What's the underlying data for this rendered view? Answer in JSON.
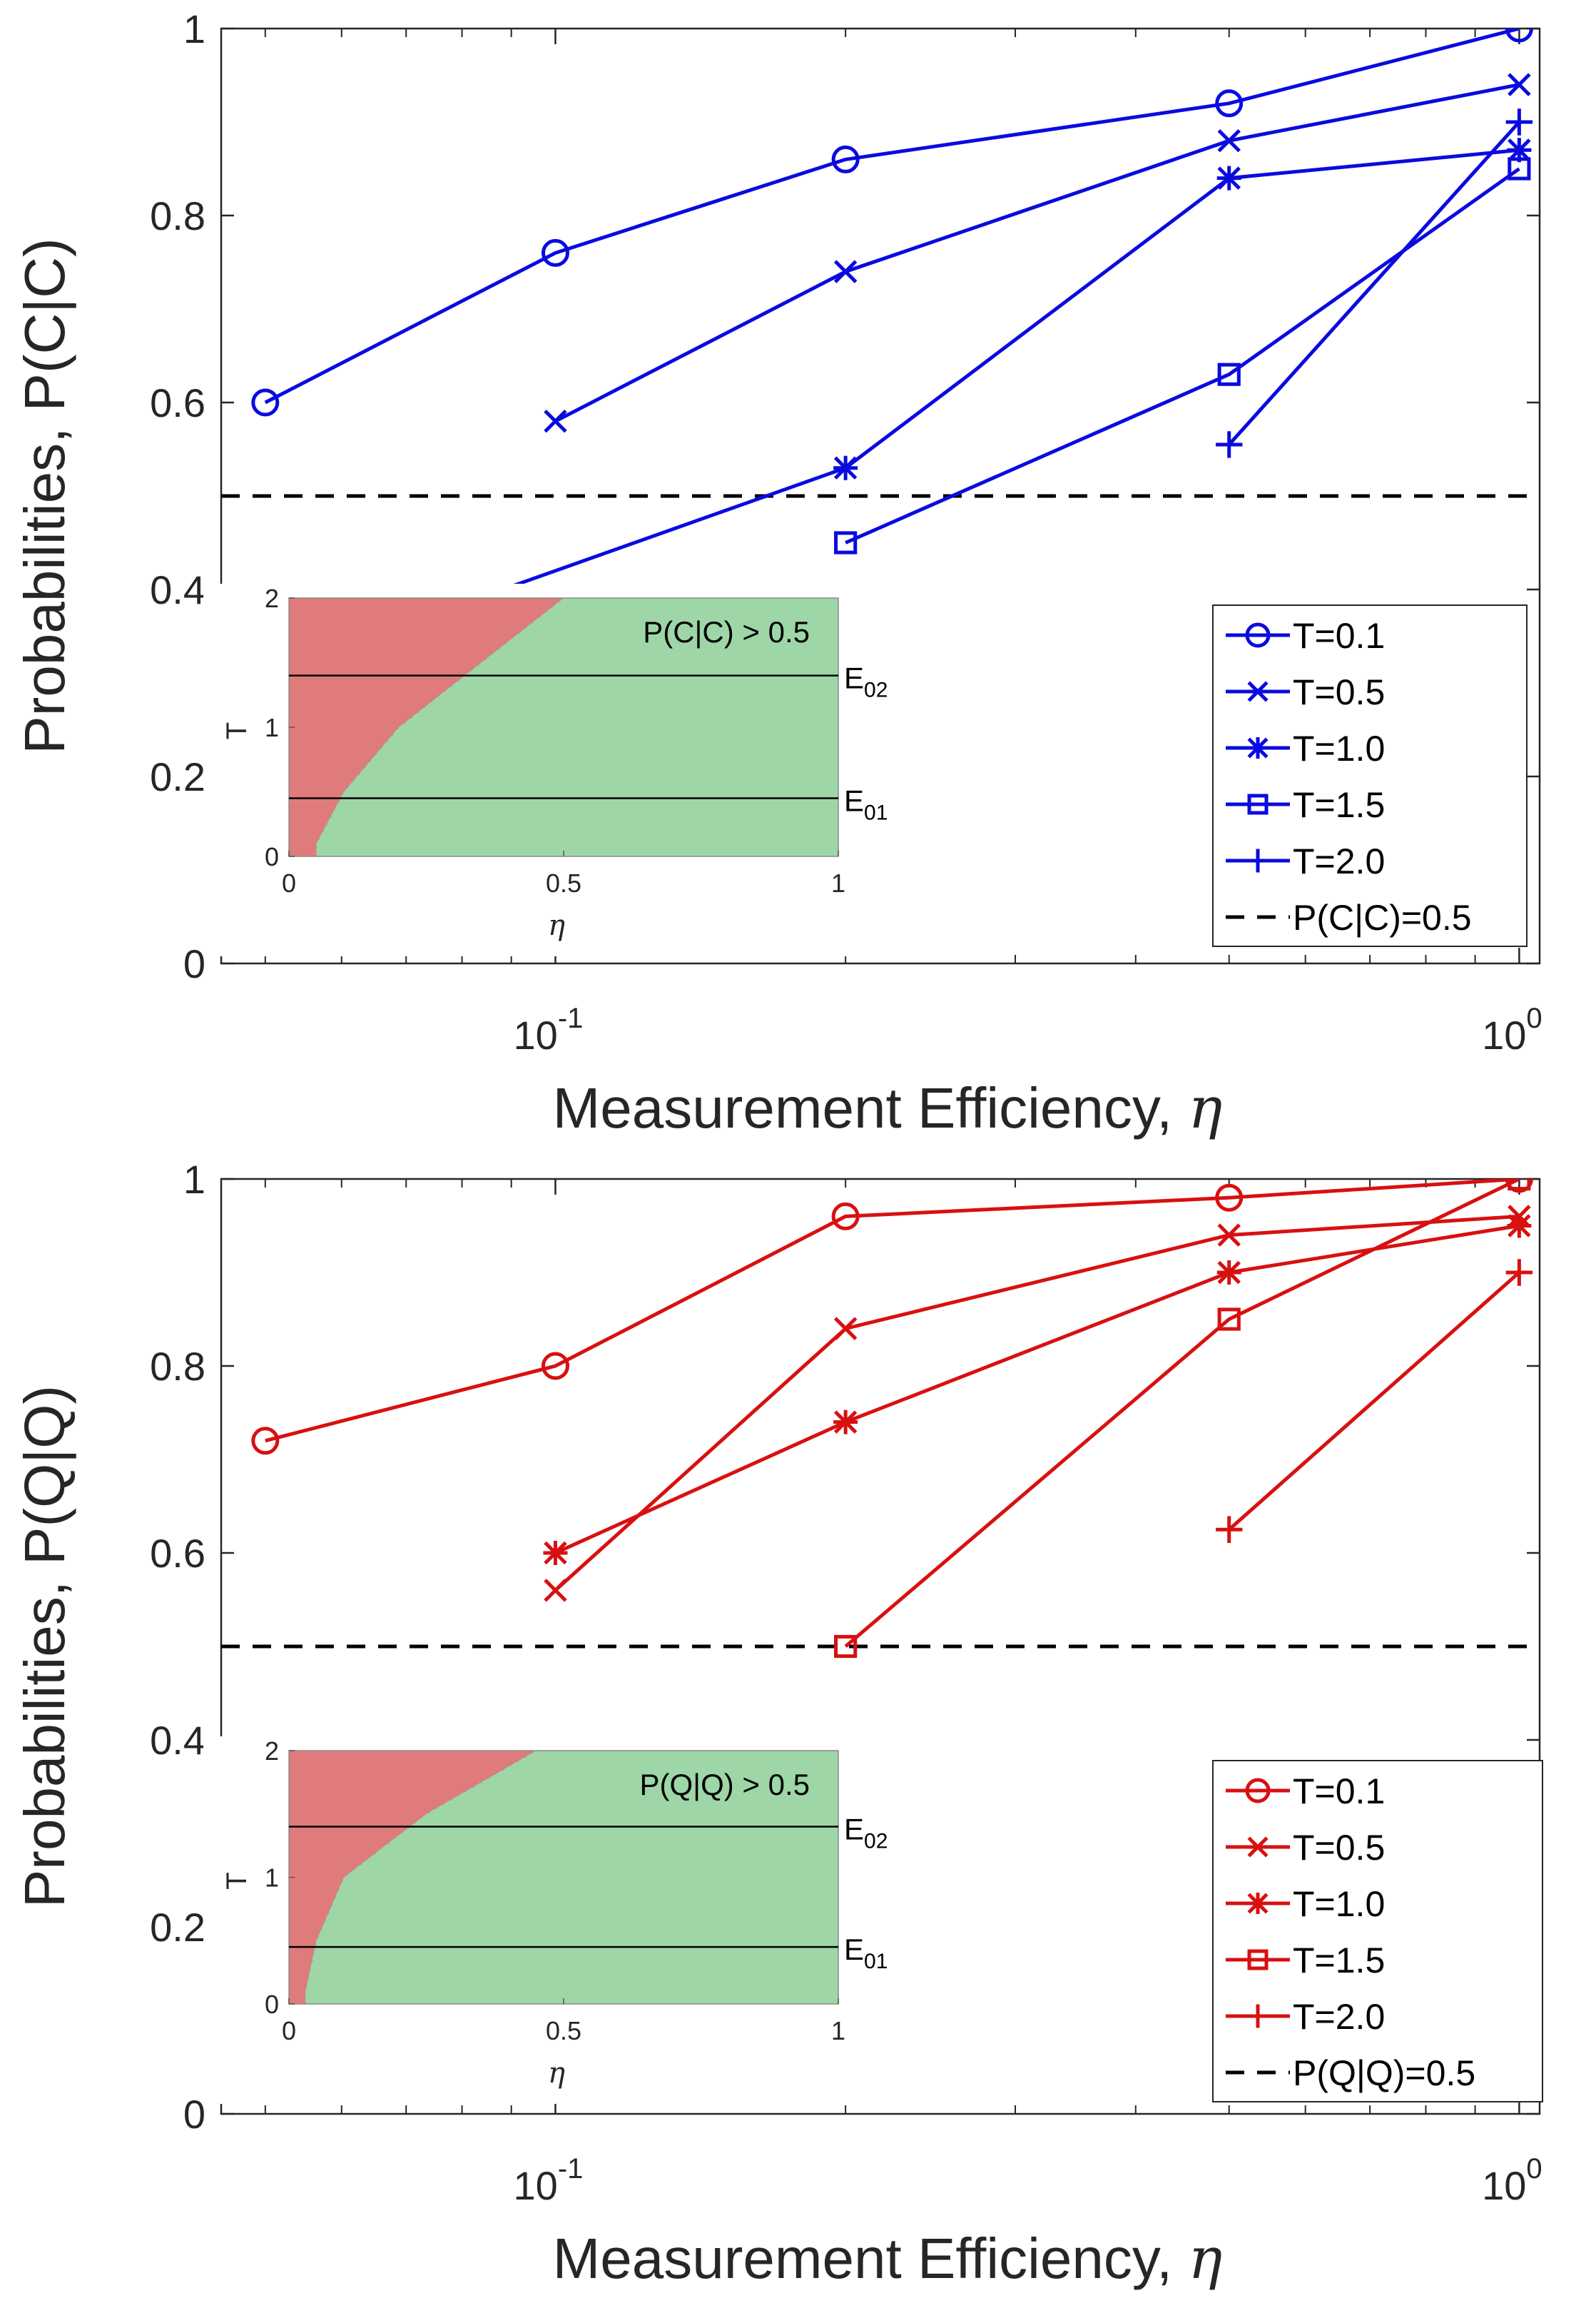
{
  "charts": [
    {
      "id": "top",
      "type": "line",
      "xscale": "log",
      "xlim": [
        0.045,
        1.05
      ],
      "ylim": [
        0,
        1
      ],
      "grid": false,
      "xlabel_text": "Measurement Efficiency, ",
      "xlabel_symbol": "η",
      "ylabel": "Probabilities, P(C|C)",
      "yticks": [
        "0",
        "0.2",
        "0.4",
        "0.6",
        "0.8",
        "1"
      ],
      "xtick_base": "10",
      "xticks": [
        {
          "value": 0.1,
          "exp": "-1"
        },
        {
          "value": 1,
          "exp": "0"
        }
      ],
      "color": "#0a0ae0",
      "series": [
        {
          "name": "T=0.1",
          "marker": "circle",
          "x": [
            0.05,
            0.1,
            0.2,
            0.5,
            1.0
          ],
          "y": [
            0.6,
            0.76,
            0.86,
            0.92,
            1.0
          ]
        },
        {
          "name": "T=0.5",
          "marker": "x",
          "x": [
            0.1,
            0.2,
            0.5,
            1.0
          ],
          "y": [
            0.58,
            0.74,
            0.88,
            0.94
          ]
        },
        {
          "name": "T=1.0",
          "marker": "star",
          "x": [
            0.05,
            0.2,
            0.5,
            1.0
          ],
          "y": [
            0.31,
            0.53,
            0.84,
            0.87
          ]
        },
        {
          "name": "T=1.5",
          "marker": "square",
          "x": [
            0.2,
            0.5,
            1.0
          ],
          "y": [
            0.45,
            0.63,
            0.85
          ]
        },
        {
          "name": "T=2.0",
          "marker": "plus",
          "x": [
            0.5,
            1.0
          ],
          "y": [
            0.555,
            0.9
          ]
        }
      ],
      "reference": {
        "name": "P(C|C)=0.5",
        "y": 0.5
      },
      "legend_position": "bottom-right",
      "inset": {
        "title": "P(C|C) > 0.5",
        "xlabel": "η",
        "ylabel": "T",
        "xticks": [
          "0",
          "0.5",
          "1"
        ],
        "yticks": [
          "0",
          "1",
          "2"
        ],
        "xlim": [
          0,
          1
        ],
        "ylim": [
          0,
          2
        ],
        "boundary": [
          [
            0.05,
            0.0
          ],
          [
            0.05,
            0.1
          ],
          [
            0.1,
            0.5
          ],
          [
            0.2,
            1.0
          ],
          [
            0.35,
            1.5
          ],
          [
            0.5,
            2.0
          ]
        ],
        "lines": [
          {
            "label": "E",
            "sub": "01",
            "y": 0.45
          },
          {
            "label": "E",
            "sub": "02",
            "y": 1.4
          }
        ],
        "color_below": "#e07b7b",
        "color_above": "#9ed6a8"
      }
    },
    {
      "id": "bottom",
      "type": "line",
      "xscale": "log",
      "xlim": [
        0.045,
        1.05
      ],
      "ylim": [
        0,
        1
      ],
      "grid": false,
      "xlabel_text": "Measurement Efficiency, ",
      "xlabel_symbol": "η",
      "ylabel": "Probabilities, P(Q|Q)",
      "yticks": [
        "0",
        "0.2",
        "0.4",
        "0.6",
        "0.8",
        "1"
      ],
      "xtick_base": "10",
      "xticks": [
        {
          "value": 0.1,
          "exp": "-1"
        },
        {
          "value": 1,
          "exp": "0"
        }
      ],
      "color": "#d81010",
      "series": [
        {
          "name": "T=0.1",
          "marker": "circle",
          "x": [
            0.05,
            0.1,
            0.2,
            0.5,
            1.0
          ],
          "y": [
            0.72,
            0.8,
            0.96,
            0.98,
            1.0
          ]
        },
        {
          "name": "T=0.5",
          "marker": "x",
          "x": [
            0.1,
            0.2,
            0.5,
            1.0
          ],
          "y": [
            0.56,
            0.84,
            0.94,
            0.96
          ]
        },
        {
          "name": "T=1.0",
          "marker": "star",
          "x": [
            0.1,
            0.2,
            0.5,
            1.0
          ],
          "y": [
            0.6,
            0.74,
            0.9,
            0.95
          ]
        },
        {
          "name": "T=1.5",
          "marker": "square",
          "x": [
            0.2,
            0.5,
            1.0
          ],
          "y": [
            0.5,
            0.85,
            1.0
          ]
        },
        {
          "name": "T=2.0",
          "marker": "plus",
          "x": [
            0.5,
            1.0
          ],
          "y": [
            0.625,
            0.9
          ]
        }
      ],
      "reference": {
        "name": "P(Q|Q)=0.5",
        "y": 0.5
      },
      "legend_position": "bottom-right",
      "inset": {
        "title": "P(Q|Q) > 0.5",
        "xlabel": "η",
        "ylabel": "T",
        "xticks": [
          "0",
          "0.5",
          "1"
        ],
        "yticks": [
          "0",
          "1",
          "2"
        ],
        "xlim": [
          0,
          1
        ],
        "ylim": [
          0,
          2
        ],
        "boundary": [
          [
            0.03,
            0.0
          ],
          [
            0.03,
            0.1
          ],
          [
            0.05,
            0.5
          ],
          [
            0.1,
            1.0
          ],
          [
            0.25,
            1.5
          ],
          [
            0.45,
            2.0
          ]
        ],
        "lines": [
          {
            "label": "E",
            "sub": "01",
            "y": 0.45
          },
          {
            "label": "E",
            "sub": "02",
            "y": 1.4
          }
        ],
        "color_below": "#e07b7b",
        "color_above": "#9ed6a8"
      }
    }
  ]
}
